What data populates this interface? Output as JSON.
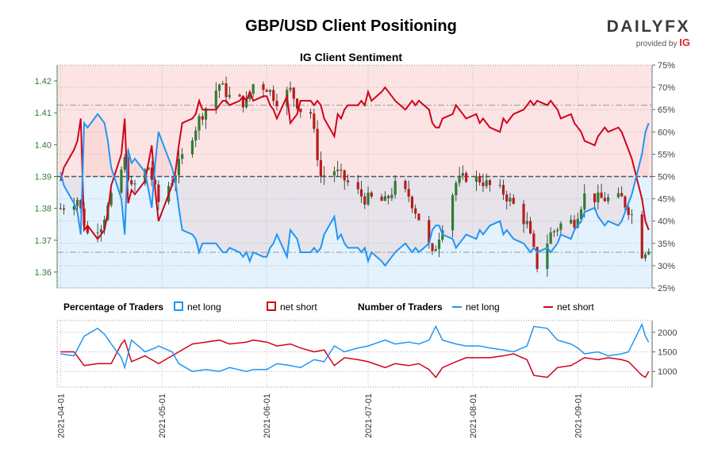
{
  "header": {
    "title": "GBP/USD Client Positioning",
    "subtitle": "IG Client Sentiment",
    "brand": "DAILYFX",
    "brand_sub": "provided by",
    "brand_ig": "IG"
  },
  "legend": {
    "pct_title": "Percentage of Traders",
    "pct_long": "net long",
    "pct_short": "net short",
    "num_title": "Number of Traders",
    "num_long": "net long",
    "num_short": "net short"
  },
  "colors": {
    "long": "#2196f3",
    "short": "#d0021b",
    "candle_up": "#2e7d32",
    "candle_down": "#b71c1c",
    "short_zone": "#fce4e4",
    "long_zone": "#e3f2fd",
    "price_axis": "#2e7d32"
  },
  "chart_data": [
    {
      "type": "candlestick",
      "ylim": [
        1.355,
        1.425
      ],
      "yticks": [
        1.36,
        1.37,
        1.38,
        1.39,
        1.4,
        1.41,
        1.42
      ],
      "xlim": [
        "2021-03-31",
        "2021-09-23"
      ],
      "candle_anchors": [
        [
          "2021-04-01",
          1.38
        ],
        [
          "2021-04-06",
          1.383
        ],
        [
          "2021-04-09",
          1.372
        ],
        [
          "2021-04-13",
          1.375
        ],
        [
          "2021-04-16",
          1.383
        ],
        [
          "2021-04-20",
          1.395
        ],
        [
          "2021-04-22",
          1.386
        ],
        [
          "2021-04-27",
          1.393
        ],
        [
          "2021-04-30",
          1.382
        ],
        [
          "2021-05-04",
          1.389
        ],
        [
          "2021-05-07",
          1.396
        ],
        [
          "2021-05-12",
          1.408
        ],
        [
          "2021-05-18",
          1.419
        ],
        [
          "2021-05-21",
          1.415
        ],
        [
          "2021-05-26",
          1.413
        ],
        [
          "2021-05-28",
          1.419
        ],
        [
          "2021-06-01",
          1.418
        ],
        [
          "2021-06-04",
          1.414
        ],
        [
          "2021-06-08",
          1.417
        ],
        [
          "2021-06-11",
          1.411
        ],
        [
          "2021-06-14",
          1.41
        ],
        [
          "2021-06-17",
          1.39
        ],
        [
          "2021-06-21",
          1.392
        ],
        [
          "2021-06-25",
          1.388
        ],
        [
          "2021-06-30",
          1.383
        ],
        [
          "2021-07-02",
          1.383
        ],
        [
          "2021-07-06",
          1.382
        ],
        [
          "2021-07-09",
          1.387
        ],
        [
          "2021-07-13",
          1.384
        ],
        [
          "2021-07-16",
          1.377
        ],
        [
          "2021-07-20",
          1.365
        ],
        [
          "2021-07-23",
          1.375
        ],
        [
          "2021-07-27",
          1.388
        ],
        [
          "2021-07-30",
          1.39
        ],
        [
          "2021-08-03",
          1.389
        ],
        [
          "2021-08-06",
          1.387
        ],
        [
          "2021-08-10",
          1.385
        ],
        [
          "2021-08-13",
          1.381
        ],
        [
          "2021-08-17",
          1.375
        ],
        [
          "2021-08-20",
          1.362
        ],
        [
          "2021-08-24",
          1.372
        ],
        [
          "2021-08-27",
          1.375
        ],
        [
          "2021-08-31",
          1.376
        ],
        [
          "2021-09-03",
          1.384
        ],
        [
          "2021-09-07",
          1.383
        ],
        [
          "2021-09-10",
          1.383
        ],
        [
          "2021-09-14",
          1.383
        ],
        [
          "2021-09-17",
          1.378
        ],
        [
          "2021-09-20",
          1.366
        ],
        [
          "2021-09-22",
          1.368
        ]
      ]
    },
    {
      "type": "line",
      "name": "IG Client Sentiment",
      "ylim": [
        25,
        75
      ],
      "yticks": [
        25,
        30,
        35,
        40,
        45,
        50,
        55,
        60,
        65,
        70,
        75
      ],
      "yticklabels": [
        "25%",
        "30%",
        "35%",
        "40%",
        "45%",
        "50%",
        "55%",
        "60%",
        "65%",
        "70%",
        "75%"
      ],
      "reference_lines": [
        66,
        50,
        33
      ],
      "net_long_pct": [
        [
          "2021-04-01",
          51
        ],
        [
          "2021-04-02",
          48
        ],
        [
          "2021-04-05",
          44
        ],
        [
          "2021-04-06",
          42
        ],
        [
          "2021-04-07",
          37
        ],
        [
          "2021-04-08",
          62
        ],
        [
          "2021-04-09",
          61
        ],
        [
          "2021-04-12",
          64
        ],
        [
          "2021-04-13",
          63
        ],
        [
          "2021-04-14",
          62
        ],
        [
          "2021-04-15",
          58
        ],
        [
          "2021-04-16",
          52
        ],
        [
          "2021-04-19",
          45
        ],
        [
          "2021-04-20",
          37
        ],
        [
          "2021-04-21",
          56
        ],
        [
          "2021-04-22",
          53
        ],
        [
          "2021-04-23",
          54
        ],
        [
          "2021-04-26",
          51
        ],
        [
          "2021-04-27",
          47
        ],
        [
          "2021-04-28",
          43
        ],
        [
          "2021-04-29",
          53
        ],
        [
          "2021-04-30",
          60
        ],
        [
          "2021-05-03",
          54
        ],
        [
          "2021-05-04",
          52
        ],
        [
          "2021-05-05",
          49
        ],
        [
          "2021-05-06",
          43
        ],
        [
          "2021-05-07",
          38
        ],
        [
          "2021-05-10",
          37
        ],
        [
          "2021-05-11",
          36
        ],
        [
          "2021-05-12",
          33
        ],
        [
          "2021-05-13",
          35
        ],
        [
          "2021-05-14",
          35
        ],
        [
          "2021-05-17",
          35
        ],
        [
          "2021-05-18",
          34
        ],
        [
          "2021-05-19",
          33
        ],
        [
          "2021-05-20",
          33
        ],
        [
          "2021-05-21",
          34
        ],
        [
          "2021-05-24",
          33
        ],
        [
          "2021-05-25",
          32
        ],
        [
          "2021-05-26",
          33
        ],
        [
          "2021-05-27",
          31
        ],
        [
          "2021-05-28",
          33
        ],
        [
          "2021-05-31",
          32
        ],
        [
          "2021-06-01",
          32
        ],
        [
          "2021-06-02",
          34
        ],
        [
          "2021-06-03",
          35
        ],
        [
          "2021-06-04",
          37
        ],
        [
          "2021-06-07",
          32
        ],
        [
          "2021-06-08",
          38
        ],
        [
          "2021-06-09",
          37
        ],
        [
          "2021-06-10",
          36
        ],
        [
          "2021-06-11",
          33
        ],
        [
          "2021-06-14",
          33
        ],
        [
          "2021-06-15",
          34
        ],
        [
          "2021-06-16",
          33
        ],
        [
          "2021-06-17",
          34
        ],
        [
          "2021-06-18",
          37
        ],
        [
          "2021-06-21",
          41
        ],
        [
          "2021-06-22",
          36
        ],
        [
          "2021-06-23",
          37
        ],
        [
          "2021-06-24",
          35
        ],
        [
          "2021-06-25",
          34
        ],
        [
          "2021-06-28",
          34
        ],
        [
          "2021-06-29",
          33
        ],
        [
          "2021-06-30",
          34
        ],
        [
          "2021-07-01",
          31
        ],
        [
          "2021-07-02",
          33
        ],
        [
          "2021-07-05",
          31
        ],
        [
          "2021-07-06",
          30
        ],
        [
          "2021-07-07",
          31
        ],
        [
          "2021-07-08",
          32
        ],
        [
          "2021-07-09",
          33
        ],
        [
          "2021-07-12",
          35
        ],
        [
          "2021-07-13",
          34
        ],
        [
          "2021-07-14",
          33
        ],
        [
          "2021-07-15",
          34
        ],
        [
          "2021-07-16",
          33
        ],
        [
          "2021-07-19",
          35
        ],
        [
          "2021-07-20",
          38
        ],
        [
          "2021-07-21",
          39
        ],
        [
          "2021-07-22",
          39
        ],
        [
          "2021-07-23",
          37
        ],
        [
          "2021-07-26",
          36
        ],
        [
          "2021-07-27",
          34
        ],
        [
          "2021-07-28",
          35
        ],
        [
          "2021-07-29",
          36
        ],
        [
          "2021-07-30",
          37
        ],
        [
          "2021-08-02",
          36
        ],
        [
          "2021-08-03",
          38
        ],
        [
          "2021-08-04",
          37
        ],
        [
          "2021-08-05",
          38
        ],
        [
          "2021-08-06",
          39
        ],
        [
          "2021-08-09",
          40
        ],
        [
          "2021-08-10",
          37
        ],
        [
          "2021-08-11",
          38
        ],
        [
          "2021-08-12",
          37
        ],
        [
          "2021-08-13",
          36
        ],
        [
          "2021-08-16",
          35
        ],
        [
          "2021-08-17",
          34
        ],
        [
          "2021-08-18",
          33
        ],
        [
          "2021-08-19",
          34
        ],
        [
          "2021-08-20",
          33
        ],
        [
          "2021-08-23",
          34
        ],
        [
          "2021-08-24",
          33
        ],
        [
          "2021-08-25",
          34
        ],
        [
          "2021-08-26",
          35
        ],
        [
          "2021-08-27",
          37
        ],
        [
          "2021-08-30",
          36
        ],
        [
          "2021-08-31",
          38
        ],
        [
          "2021-09-01",
          39
        ],
        [
          "2021-09-02",
          40
        ],
        [
          "2021-09-03",
          42
        ],
        [
          "2021-09-06",
          43
        ],
        [
          "2021-09-07",
          41
        ],
        [
          "2021-09-08",
          40
        ],
        [
          "2021-09-09",
          39
        ],
        [
          "2021-09-10",
          40
        ],
        [
          "2021-09-13",
          39
        ],
        [
          "2021-09-14",
          40
        ],
        [
          "2021-09-15",
          42
        ],
        [
          "2021-09-16",
          44
        ],
        [
          "2021-09-17",
          46
        ],
        [
          "2021-09-20",
          55
        ],
        [
          "2021-09-21",
          60
        ],
        [
          "2021-09-22",
          62
        ]
      ]
    },
    {
      "type": "line",
      "name": "Number of Traders",
      "ylim": [
        600,
        2300
      ],
      "yticks": [
        1000,
        1500,
        2000
      ],
      "net_long": [
        [
          "2021-04-01",
          1450
        ],
        [
          "2021-04-05",
          1400
        ],
        [
          "2021-04-08",
          1900
        ],
        [
          "2021-04-12",
          2100
        ],
        [
          "2021-04-14",
          1950
        ],
        [
          "2021-04-16",
          1700
        ],
        [
          "2021-04-19",
          1350
        ],
        [
          "2021-04-20",
          1100
        ],
        [
          "2021-04-22",
          1800
        ],
        [
          "2021-04-26",
          1500
        ],
        [
          "2021-04-29",
          1600
        ],
        [
          "2021-04-30",
          1650
        ],
        [
          "2021-05-04",
          1500
        ],
        [
          "2021-05-06",
          1200
        ],
        [
          "2021-05-10",
          1000
        ],
        [
          "2021-05-14",
          1050
        ],
        [
          "2021-05-18",
          1000
        ],
        [
          "2021-05-21",
          1100
        ],
        [
          "2021-05-26",
          1000
        ],
        [
          "2021-05-28",
          1050
        ],
        [
          "2021-06-01",
          1050
        ],
        [
          "2021-06-04",
          1200
        ],
        [
          "2021-06-08",
          1150
        ],
        [
          "2021-06-11",
          1100
        ],
        [
          "2021-06-15",
          1300
        ],
        [
          "2021-06-18",
          1250
        ],
        [
          "2021-06-21",
          1650
        ],
        [
          "2021-06-24",
          1500
        ],
        [
          "2021-06-28",
          1600
        ],
        [
          "2021-07-01",
          1650
        ],
        [
          "2021-07-06",
          1800
        ],
        [
          "2021-07-09",
          1700
        ],
        [
          "2021-07-13",
          1750
        ],
        [
          "2021-07-16",
          1700
        ],
        [
          "2021-07-19",
          1800
        ],
        [
          "2021-07-21",
          2150
        ],
        [
          "2021-07-23",
          1800
        ],
        [
          "2021-07-27",
          1700
        ],
        [
          "2021-07-30",
          1650
        ],
        [
          "2021-08-03",
          1650
        ],
        [
          "2021-08-06",
          1600
        ],
        [
          "2021-08-10",
          1550
        ],
        [
          "2021-08-13",
          1500
        ],
        [
          "2021-08-17",
          1650
        ],
        [
          "2021-08-19",
          2150
        ],
        [
          "2021-08-23",
          2100
        ],
        [
          "2021-08-26",
          1800
        ],
        [
          "2021-08-30",
          1700
        ],
        [
          "2021-09-01",
          1600
        ],
        [
          "2021-09-03",
          1450
        ],
        [
          "2021-09-07",
          1500
        ],
        [
          "2021-09-10",
          1400
        ],
        [
          "2021-09-14",
          1450
        ],
        [
          "2021-09-16",
          1500
        ],
        [
          "2021-09-20",
          2200
        ],
        [
          "2021-09-21",
          1900
        ],
        [
          "2021-09-22",
          1750
        ]
      ],
      "net_short": [
        [
          "2021-04-01",
          1500
        ],
        [
          "2021-04-05",
          1500
        ],
        [
          "2021-04-08",
          1150
        ],
        [
          "2021-04-12",
          1200
        ],
        [
          "2021-04-14",
          1200
        ],
        [
          "2021-04-16",
          1200
        ],
        [
          "2021-04-19",
          1700
        ],
        [
          "2021-04-20",
          1800
        ],
        [
          "2021-04-22",
          1250
        ],
        [
          "2021-04-26",
          1400
        ],
        [
          "2021-04-29",
          1250
        ],
        [
          "2021-04-30",
          1200
        ],
        [
          "2021-05-04",
          1400
        ],
        [
          "2021-05-06",
          1500
        ],
        [
          "2021-05-10",
          1700
        ],
        [
          "2021-05-14",
          1750
        ],
        [
          "2021-05-18",
          1800
        ],
        [
          "2021-05-21",
          1700
        ],
        [
          "2021-05-26",
          1750
        ],
        [
          "2021-05-28",
          1800
        ],
        [
          "2021-06-01",
          1750
        ],
        [
          "2021-06-04",
          1650
        ],
        [
          "2021-06-08",
          1700
        ],
        [
          "2021-06-11",
          1600
        ],
        [
          "2021-06-15",
          1500
        ],
        [
          "2021-06-18",
          1550
        ],
        [
          "2021-06-21",
          1150
        ],
        [
          "2021-06-24",
          1350
        ],
        [
          "2021-06-28",
          1300
        ],
        [
          "2021-07-01",
          1250
        ],
        [
          "2021-07-06",
          1100
        ],
        [
          "2021-07-09",
          1200
        ],
        [
          "2021-07-13",
          1150
        ],
        [
          "2021-07-16",
          1200
        ],
        [
          "2021-07-19",
          1050
        ],
        [
          "2021-07-21",
          850
        ],
        [
          "2021-07-23",
          1100
        ],
        [
          "2021-07-27",
          1250
        ],
        [
          "2021-07-30",
          1350
        ],
        [
          "2021-08-03",
          1350
        ],
        [
          "2021-08-06",
          1350
        ],
        [
          "2021-08-10",
          1400
        ],
        [
          "2021-08-13",
          1450
        ],
        [
          "2021-08-17",
          1300
        ],
        [
          "2021-08-19",
          900
        ],
        [
          "2021-08-23",
          850
        ],
        [
          "2021-08-26",
          1100
        ],
        [
          "2021-08-30",
          1150
        ],
        [
          "2021-09-01",
          1250
        ],
        [
          "2021-09-03",
          1350
        ],
        [
          "2021-09-07",
          1300
        ],
        [
          "2021-09-10",
          1350
        ],
        [
          "2021-09-14",
          1300
        ],
        [
          "2021-09-16",
          1250
        ],
        [
          "2021-09-20",
          900
        ],
        [
          "2021-09-21",
          850
        ],
        [
          "2021-09-22",
          1000
        ]
      ]
    }
  ],
  "x_axis": {
    "ticks": [
      "2021-04-01",
      "2021-05-01",
      "2021-06-01",
      "2021-07-01",
      "2021-08-01",
      "2021-09-01"
    ]
  }
}
